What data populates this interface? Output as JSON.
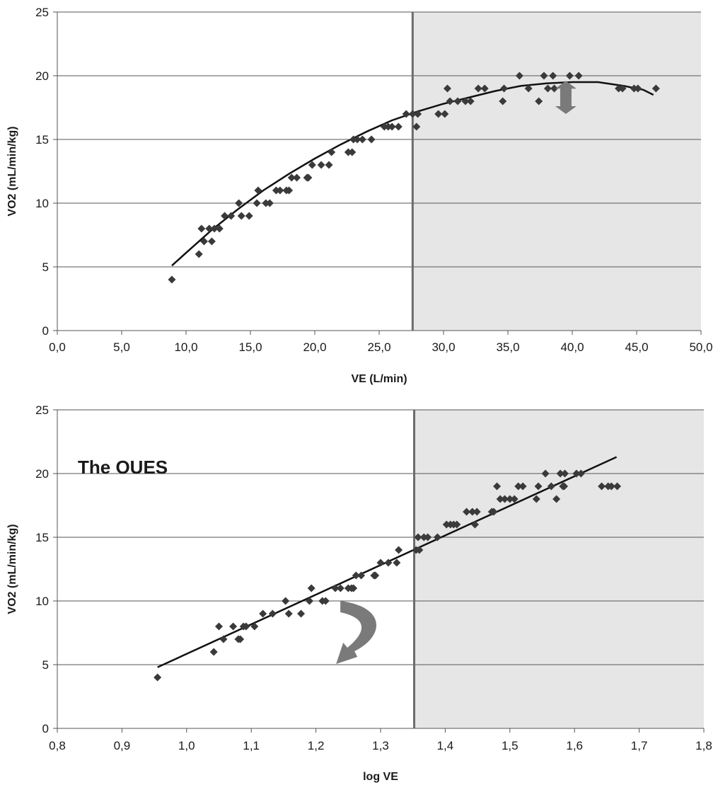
{
  "chart_data": [
    {
      "type": "scatter",
      "xlabel": "VE (L/min)",
      "ylabel": "VO2 (mL/min/kg)",
      "xlim": [
        0,
        50
      ],
      "ylim": [
        0,
        25
      ],
      "xticks": [
        "0,0",
        "5,0",
        "10,0",
        "15,0",
        "20,0",
        "25,0",
        "30,0",
        "35,0",
        "40,0",
        "45,0",
        "50,0"
      ],
      "yticks": [
        "0",
        "5",
        "10",
        "15",
        "20",
        "25"
      ],
      "grid": "horizontal",
      "threshold_x": 27.6,
      "shaded_region_x": [
        27.6,
        50
      ],
      "marker_color": "#3a3a3a",
      "shade_color": "#e6e6e6",
      "threshold_color": "#6b6b6b",
      "arrow": {
        "icon": "double-headed-vertical-arrow",
        "color": "#7a7a7a",
        "x": 39.5,
        "y": [
          17,
          19.6
        ]
      },
      "points": [
        [
          8.9,
          4
        ],
        [
          11.0,
          6
        ],
        [
          11.2,
          8
        ],
        [
          11.4,
          7
        ],
        [
          11.8,
          8
        ],
        [
          12.0,
          7
        ],
        [
          12.2,
          8
        ],
        [
          12.6,
          8
        ],
        [
          13.0,
          9
        ],
        [
          13.5,
          9
        ],
        [
          14.1,
          10
        ],
        [
          14.3,
          9
        ],
        [
          14.9,
          9
        ],
        [
          15.5,
          10
        ],
        [
          15.6,
          11
        ],
        [
          16.2,
          10
        ],
        [
          16.5,
          10
        ],
        [
          17.0,
          11
        ],
        [
          17.3,
          11
        ],
        [
          17.8,
          11
        ],
        [
          18.0,
          11
        ],
        [
          18.2,
          12
        ],
        [
          18.6,
          12
        ],
        [
          19.4,
          12
        ],
        [
          19.5,
          12
        ],
        [
          19.8,
          13
        ],
        [
          20.5,
          13
        ],
        [
          21.1,
          13
        ],
        [
          21.3,
          14
        ],
        [
          22.6,
          14
        ],
        [
          22.9,
          14
        ],
        [
          23.0,
          15
        ],
        [
          23.3,
          15
        ],
        [
          23.7,
          15
        ],
        [
          24.4,
          15
        ],
        [
          25.4,
          16
        ],
        [
          25.7,
          16
        ],
        [
          26.0,
          16
        ],
        [
          26.5,
          16
        ],
        [
          27.1,
          17
        ],
        [
          27.6,
          17
        ],
        [
          27.9,
          16
        ],
        [
          28.0,
          17
        ],
        [
          29.6,
          17
        ],
        [
          30.1,
          17
        ],
        [
          30.3,
          19
        ],
        [
          30.5,
          18
        ],
        [
          31.1,
          18
        ],
        [
          31.7,
          18
        ],
        [
          32.1,
          18
        ],
        [
          32.7,
          19
        ],
        [
          33.2,
          19
        ],
        [
          34.6,
          18
        ],
        [
          34.7,
          19
        ],
        [
          35.9,
          20
        ],
        [
          36.6,
          19
        ],
        [
          37.4,
          18
        ],
        [
          37.8,
          20
        ],
        [
          38.1,
          19
        ],
        [
          38.5,
          20
        ],
        [
          38.6,
          19
        ],
        [
          39.8,
          20
        ],
        [
          40.5,
          20
        ],
        [
          43.6,
          19
        ],
        [
          43.9,
          19
        ],
        [
          44.8,
          19
        ],
        [
          45.1,
          19
        ],
        [
          46.5,
          19
        ]
      ],
      "fit_line": [
        [
          8.9,
          5.1
        ],
        [
          10,
          6.1
        ],
        [
          12,
          7.9
        ],
        [
          14,
          9.5
        ],
        [
          16,
          11.0
        ],
        [
          18,
          12.3
        ],
        [
          20,
          13.5
        ],
        [
          22,
          14.6
        ],
        [
          24,
          15.6
        ],
        [
          26,
          16.5
        ],
        [
          28,
          17.2
        ],
        [
          30,
          17.8
        ],
        [
          32,
          18.3
        ],
        [
          34,
          18.8
        ],
        [
          36,
          19.2
        ],
        [
          38,
          19.4
        ],
        [
          40,
          19.5
        ],
        [
          42,
          19.5
        ],
        [
          44,
          19.2
        ],
        [
          45.5,
          18.9
        ],
        [
          46.3,
          18.5
        ]
      ]
    },
    {
      "type": "scatter",
      "title": "The OUES",
      "xlabel": "log VE",
      "ylabel": "VO2 (mL/min/kg)",
      "xlim": [
        0.8,
        1.8
      ],
      "ylim": [
        0,
        25
      ],
      "xticks": [
        "0,8",
        "0,9",
        "1,0",
        "1,1",
        "1,2",
        "1,3",
        "1,4",
        "1,5",
        "1,6",
        "1,7",
        "1,8"
      ],
      "yticks": [
        "0",
        "5",
        "10",
        "15",
        "20",
        "25"
      ],
      "grid": "horizontal",
      "threshold_x": 1.352,
      "shaded_region_x": [
        1.352,
        1.8
      ],
      "marker_color": "#3a3a3a",
      "shade_color": "#e6e6e6",
      "threshold_color": "#6b6b6b",
      "arrow": {
        "icon": "curved-rotation-arrow",
        "color": "#7a7a7a",
        "x": 1.24,
        "y": [
          5.5,
          10
        ]
      },
      "points": [
        [
          0.955,
          4
        ],
        [
          1.042,
          6
        ],
        [
          1.05,
          8
        ],
        [
          1.057,
          7
        ],
        [
          1.072,
          8
        ],
        [
          1.08,
          7
        ],
        [
          1.083,
          7
        ],
        [
          1.088,
          8
        ],
        [
          1.092,
          8
        ],
        [
          1.105,
          8
        ],
        [
          1.118,
          9
        ],
        [
          1.133,
          9
        ],
        [
          1.153,
          10
        ],
        [
          1.158,
          9
        ],
        [
          1.177,
          9
        ],
        [
          1.19,
          10
        ],
        [
          1.193,
          11
        ],
        [
          1.21,
          10
        ],
        [
          1.215,
          10
        ],
        [
          1.23,
          11
        ],
        [
          1.238,
          11
        ],
        [
          1.25,
          11
        ],
        [
          1.255,
          11
        ],
        [
          1.258,
          11
        ],
        [
          1.262,
          12
        ],
        [
          1.27,
          12
        ],
        [
          1.29,
          12
        ],
        [
          1.292,
          12
        ],
        [
          1.3,
          13
        ],
        [
          1.312,
          13
        ],
        [
          1.325,
          13
        ],
        [
          1.328,
          14
        ],
        [
          1.355,
          14
        ],
        [
          1.358,
          15
        ],
        [
          1.36,
          14
        ],
        [
          1.367,
          15
        ],
        [
          1.373,
          15
        ],
        [
          1.388,
          15
        ],
        [
          1.402,
          16
        ],
        [
          1.408,
          16
        ],
        [
          1.413,
          16
        ],
        [
          1.418,
          16
        ],
        [
          1.433,
          17
        ],
        [
          1.442,
          17
        ],
        [
          1.446,
          16
        ],
        [
          1.449,
          17
        ],
        [
          1.472,
          17
        ],
        [
          1.475,
          17
        ],
        [
          1.48,
          19
        ],
        [
          1.485,
          18
        ],
        [
          1.492,
          18
        ],
        [
          1.5,
          18
        ],
        [
          1.507,
          18
        ],
        [
          1.513,
          19
        ],
        [
          1.52,
          19
        ],
        [
          1.541,
          18
        ],
        [
          1.544,
          19
        ],
        [
          1.555,
          20
        ],
        [
          1.564,
          19
        ],
        [
          1.572,
          18
        ],
        [
          1.578,
          20
        ],
        [
          1.582,
          19
        ],
        [
          1.584,
          19
        ],
        [
          1.585,
          20
        ],
        [
          1.603,
          20
        ],
        [
          1.61,
          20
        ],
        [
          1.642,
          19
        ],
        [
          1.652,
          19
        ],
        [
          1.657,
          19
        ],
        [
          1.666,
          19
        ]
      ],
      "fit_line": [
        [
          0.955,
          4.8
        ],
        [
          1.665,
          21.3
        ]
      ]
    }
  ]
}
